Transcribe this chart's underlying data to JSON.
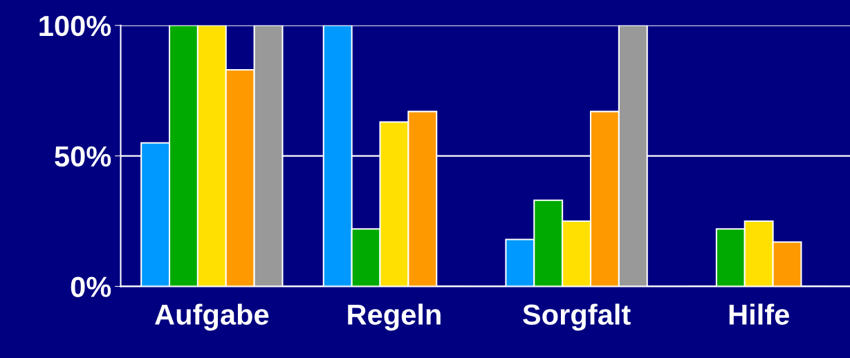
{
  "chart_data": {
    "type": "bar",
    "categories": [
      "Aufgabe",
      "Regeln",
      "Sorgfalt",
      "Hilfe"
    ],
    "series": [
      {
        "color": "#0099ff",
        "values": [
          55,
          100,
          18,
          0
        ]
      },
      {
        "color": "#00aa00",
        "values": [
          100,
          22,
          33,
          22
        ]
      },
      {
        "color": "#ffe000",
        "values": [
          100,
          63,
          25,
          25
        ]
      },
      {
        "color": "#ff9900",
        "values": [
          83,
          67,
          67,
          17
        ]
      },
      {
        "color": "#999999",
        "values": [
          100,
          0,
          100,
          0
        ]
      }
    ],
    "ylim": [
      0,
      100
    ],
    "yticks": [
      {
        "value": 0,
        "label": "0%"
      },
      {
        "value": 50,
        "label": "50%"
      },
      {
        "value": 100,
        "label": "100%"
      }
    ],
    "grid": "y",
    "legend": false
  }
}
